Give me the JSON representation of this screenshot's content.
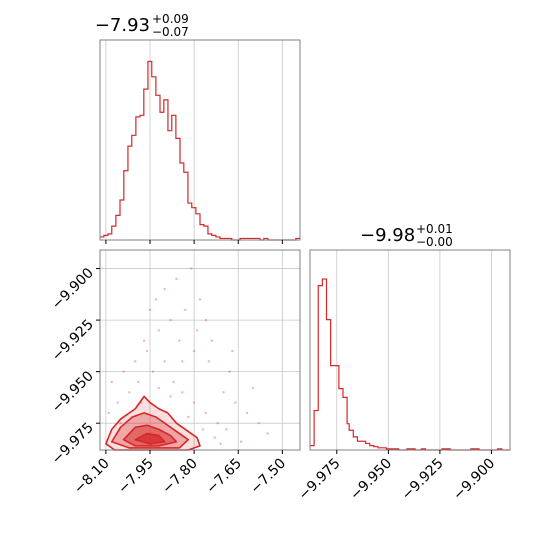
{
  "chart_data": {
    "type": "corner",
    "color": "#d62728",
    "grid": true,
    "panels": [
      {
        "name": "marginal-param-1",
        "type": "histogram-step",
        "title": {
          "value": "−7.93",
          "plus": "+0.09",
          "minus": "−0.07"
        },
        "xlim": [
          -8.12,
          -7.44
        ],
        "bins": [
          -8.12,
          -8.107,
          -8.093,
          -8.08,
          -8.066,
          -8.052,
          -8.039,
          -8.025,
          -8.012,
          -7.998,
          -7.984,
          -7.971,
          -7.957,
          -7.944,
          -7.93,
          -7.916,
          -7.903,
          -7.889,
          -7.876,
          -7.862,
          -7.848,
          -7.835,
          -7.821,
          -7.808,
          -7.794,
          -7.78,
          -7.767,
          -7.753,
          -7.74,
          -7.726,
          -7.712,
          -7.699,
          -7.685,
          -7.672,
          -7.658,
          -7.644,
          -7.631,
          -7.617,
          -7.604,
          -7.59,
          -7.576,
          -7.563,
          -7.549,
          -7.536,
          -7.522,
          -7.508,
          -7.495,
          -7.481,
          -7.468,
          -7.454,
          -7.44
        ],
        "counts": [
          2,
          3,
          4,
          9,
          16,
          26,
          45,
          61,
          68,
          80,
          81,
          98,
          116,
          106,
          94,
          83,
          91,
          71,
          81,
          66,
          50,
          44,
          24,
          21,
          17,
          10,
          9,
          4,
          3,
          2,
          1,
          1,
          1,
          0,
          0,
          1,
          1,
          1,
          1,
          1,
          0,
          1,
          0,
          0,
          0,
          0,
          0,
          0,
          0,
          1
        ],
        "xticks": [
          -8.1,
          -7.95,
          -7.8,
          -7.65,
          -7.5
        ]
      },
      {
        "name": "marginal-param-2",
        "type": "histogram-step",
        "title": {
          "value": "−9.98",
          "plus": "+0.01",
          "minus": "−0.00"
        },
        "xlim": [
          -9.988,
          -9.891
        ],
        "bins": [
          -9.988,
          -9.986,
          -9.984,
          -9.982,
          -9.98,
          -9.978,
          -9.976,
          -9.974,
          -9.972,
          -9.97,
          -9.969,
          -9.967,
          -9.965,
          -9.963,
          -9.961,
          -9.959,
          -9.957,
          -9.955,
          -9.953,
          -9.951,
          -9.949,
          -9.947,
          -9.945,
          -9.943,
          -9.941,
          -9.939,
          -9.937,
          -9.936,
          -9.934,
          -9.932,
          -9.93,
          -9.928,
          -9.926,
          -9.924,
          -9.922,
          -9.92,
          -9.918,
          -9.916,
          -9.914,
          -9.912,
          -9.91,
          -9.908,
          -9.906,
          -9.904,
          -9.903,
          -9.901,
          -9.899,
          -9.897,
          -9.895,
          -9.893,
          -9.891
        ],
        "counts": [
          4,
          36,
          150,
          156,
          119,
          77,
          77,
          56,
          48,
          24,
          18,
          12,
          8,
          8,
          6,
          4,
          3,
          2,
          2,
          1,
          1,
          1,
          0,
          0,
          1,
          1,
          0,
          0,
          1,
          0,
          0,
          0,
          0,
          1,
          1,
          0,
          0,
          0,
          0,
          0,
          1,
          1,
          0,
          0,
          0,
          0,
          0,
          1,
          0,
          0
        ],
        "xticks": [
          -9.975,
          -9.95,
          -9.925,
          -9.9
        ],
        "xticklabels": [
          "−9.975",
          "−9.950",
          "−9.925",
          "−9.900"
        ]
      },
      {
        "name": "joint-param-1-vs-param-2",
        "type": "scatter-contour",
        "xlim": [
          -8.12,
          -7.44
        ],
        "ylim": [
          -9.988,
          -9.891
        ],
        "xticks": [
          -8.1,
          -7.95,
          -7.8,
          -7.65,
          -7.5
        ],
        "xticklabels": [
          "−8.10",
          "−7.95",
          "−7.80",
          "−7.65",
          "−7.50"
        ],
        "yticks": [
          -9.975,
          -9.95,
          -9.925,
          -9.9
        ],
        "yticklabels": [
          "−9.975",
          "−9.950",
          "−9.925",
          "−9.900"
        ],
        "contour_levels": [
          {
            "fill_alpha": 0.15,
            "points": [
              [
                -8.1,
                -9.985
              ],
              [
                -8.08,
                -9.978
              ],
              [
                -8.05,
                -9.973
              ],
              [
                -8.0,
                -9.968
              ],
              [
                -7.97,
                -9.962
              ],
              [
                -7.95,
                -9.965
              ],
              [
                -7.92,
                -9.968
              ],
              [
                -7.89,
                -9.97
              ],
              [
                -7.86,
                -9.975
              ],
              [
                -7.82,
                -9.979
              ],
              [
                -7.79,
                -9.982
              ],
              [
                -7.78,
                -9.986
              ],
              [
                -7.82,
                -9.988
              ],
              [
                -7.9,
                -9.988
              ],
              [
                -8.0,
                -9.988
              ],
              [
                -8.07,
                -9.988
              ]
            ]
          },
          {
            "fill_alpha": 0.3,
            "points": [
              [
                -8.08,
                -9.984
              ],
              [
                -8.05,
                -9.977
              ],
              [
                -8.01,
                -9.972
              ],
              [
                -7.97,
                -9.97
              ],
              [
                -7.93,
                -9.972
              ],
              [
                -7.9,
                -9.975
              ],
              [
                -7.86,
                -9.979
              ],
              [
                -7.82,
                -9.983
              ],
              [
                -7.85,
                -9.987
              ],
              [
                -7.93,
                -9.987
              ],
              [
                -8.02,
                -9.987
              ]
            ]
          },
          {
            "fill_alpha": 0.5,
            "points": [
              [
                -8.04,
                -9.983
              ],
              [
                -8.0,
                -9.977
              ],
              [
                -7.96,
                -9.976
              ],
              [
                -7.92,
                -9.978
              ],
              [
                -7.88,
                -9.981
              ],
              [
                -7.86,
                -9.984
              ],
              [
                -7.92,
                -9.986
              ],
              [
                -8.0,
                -9.986
              ]
            ]
          },
          {
            "fill_alpha": 0.7,
            "points": [
              [
                -8.0,
                -9.983
              ],
              [
                -7.96,
                -9.98
              ],
              [
                -7.92,
                -9.981
              ],
              [
                -7.9,
                -9.984
              ],
              [
                -7.95,
                -9.985
              ]
            ]
          }
        ],
        "scatter_points": [
          [
            -8.06,
            -9.965
          ],
          [
            -8.02,
            -9.96
          ],
          [
            -7.99,
            -9.955
          ],
          [
            -7.94,
            -9.95
          ],
          [
            -7.9,
            -9.945
          ],
          [
            -7.87,
            -9.955
          ],
          [
            -7.84,
            -9.96
          ],
          [
            -7.8,
            -9.965
          ],
          [
            -7.76,
            -9.97
          ],
          [
            -7.72,
            -9.975
          ],
          [
            -7.7,
            -9.96
          ],
          [
            -7.68,
            -9.95
          ],
          [
            -7.75,
            -9.945
          ],
          [
            -7.8,
            -9.94
          ],
          [
            -7.85,
            -9.935
          ],
          [
            -7.88,
            -9.925
          ],
          [
            -7.92,
            -9.93
          ],
          [
            -7.96,
            -9.94
          ],
          [
            -8.0,
            -9.945
          ],
          [
            -8.04,
            -9.95
          ],
          [
            -8.08,
            -9.955
          ],
          [
            -7.83,
            -9.92
          ],
          [
            -7.78,
            -9.915
          ],
          [
            -7.74,
            -9.935
          ],
          [
            -7.66,
            -9.965
          ],
          [
            -7.62,
            -9.97
          ],
          [
            -7.58,
            -9.975
          ],
          [
            -7.55,
            -9.98
          ],
          [
            -7.9,
            -9.91
          ],
          [
            -7.86,
            -9.905
          ],
          [
            -7.81,
            -9.9
          ],
          [
            -7.95,
            -9.92
          ],
          [
            -8.05,
            -9.975
          ],
          [
            -7.98,
            -9.965
          ],
          [
            -7.92,
            -9.958
          ],
          [
            -7.88,
            -9.962
          ],
          [
            -7.82,
            -9.972
          ],
          [
            -7.77,
            -9.978
          ],
          [
            -7.73,
            -9.982
          ],
          [
            -7.71,
            -9.985
          ],
          [
            -7.69,
            -9.978
          ],
          [
            -7.64,
            -9.984
          ],
          [
            -8.09,
            -9.97
          ],
          [
            -7.97,
            -9.935
          ],
          [
            -7.93,
            -9.915
          ],
          [
            -7.79,
            -9.93
          ],
          [
            -7.76,
            -9.925
          ],
          [
            -7.84,
            -9.945
          ],
          [
            -7.67,
            -9.94
          ],
          [
            -7.6,
            -9.958
          ]
        ]
      }
    ]
  }
}
